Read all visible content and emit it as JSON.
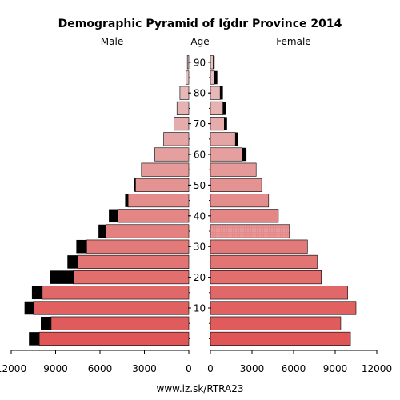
{
  "chart_data": {
    "type": "bar",
    "title": "Demographic Pyramid of Iğdır Province 2014",
    "male_label": "Male",
    "female_label": "Female",
    "age_label": "Age",
    "source": "www.iz.sk/RTRA23",
    "x_ticks_male": [
      12000,
      9000,
      6000,
      3000,
      0
    ],
    "x_ticks_female": [
      0,
      3000,
      6000,
      9000,
      12000
    ],
    "x_max": 12000,
    "age_ticks": [
      10,
      20,
      30,
      40,
      50,
      60,
      70,
      80,
      90
    ],
    "age_groups": [
      "0-4",
      "5-9",
      "10-14",
      "15-19",
      "20-24",
      "25-29",
      "30-34",
      "35-39",
      "40-44",
      "45-49",
      "50-54",
      "55-59",
      "60-64",
      "65-69",
      "70-74",
      "75-79",
      "80-84",
      "85-89",
      "90-94"
    ],
    "series": [
      {
        "name": "Male",
        "values": [
          10100,
          9300,
          10500,
          9900,
          7800,
          7500,
          6900,
          5600,
          4800,
          4100,
          3600,
          3200,
          2300,
          1700,
          1000,
          800,
          600,
          200,
          100
        ],
        "excess": [
          700,
          700,
          600,
          700,
          1600,
          700,
          700,
          500,
          600,
          200,
          100,
          0,
          0,
          0,
          0,
          0,
          0,
          0,
          0
        ]
      },
      {
        "name": "Female",
        "values": [
          10100,
          9400,
          10500,
          9900,
          8000,
          7700,
          7000,
          5700,
          4900,
          4200,
          3700,
          3300,
          2300,
          1800,
          1000,
          900,
          700,
          300,
          200
        ],
        "excess": [
          0,
          0,
          0,
          0,
          0,
          0,
          0,
          0,
          0,
          0,
          0,
          0,
          300,
          200,
          200,
          200,
          200,
          200,
          100
        ]
      }
    ],
    "fill_top": "#e8c4c4",
    "fill_bottom": "#e05555",
    "excess_color": "#000000"
  }
}
